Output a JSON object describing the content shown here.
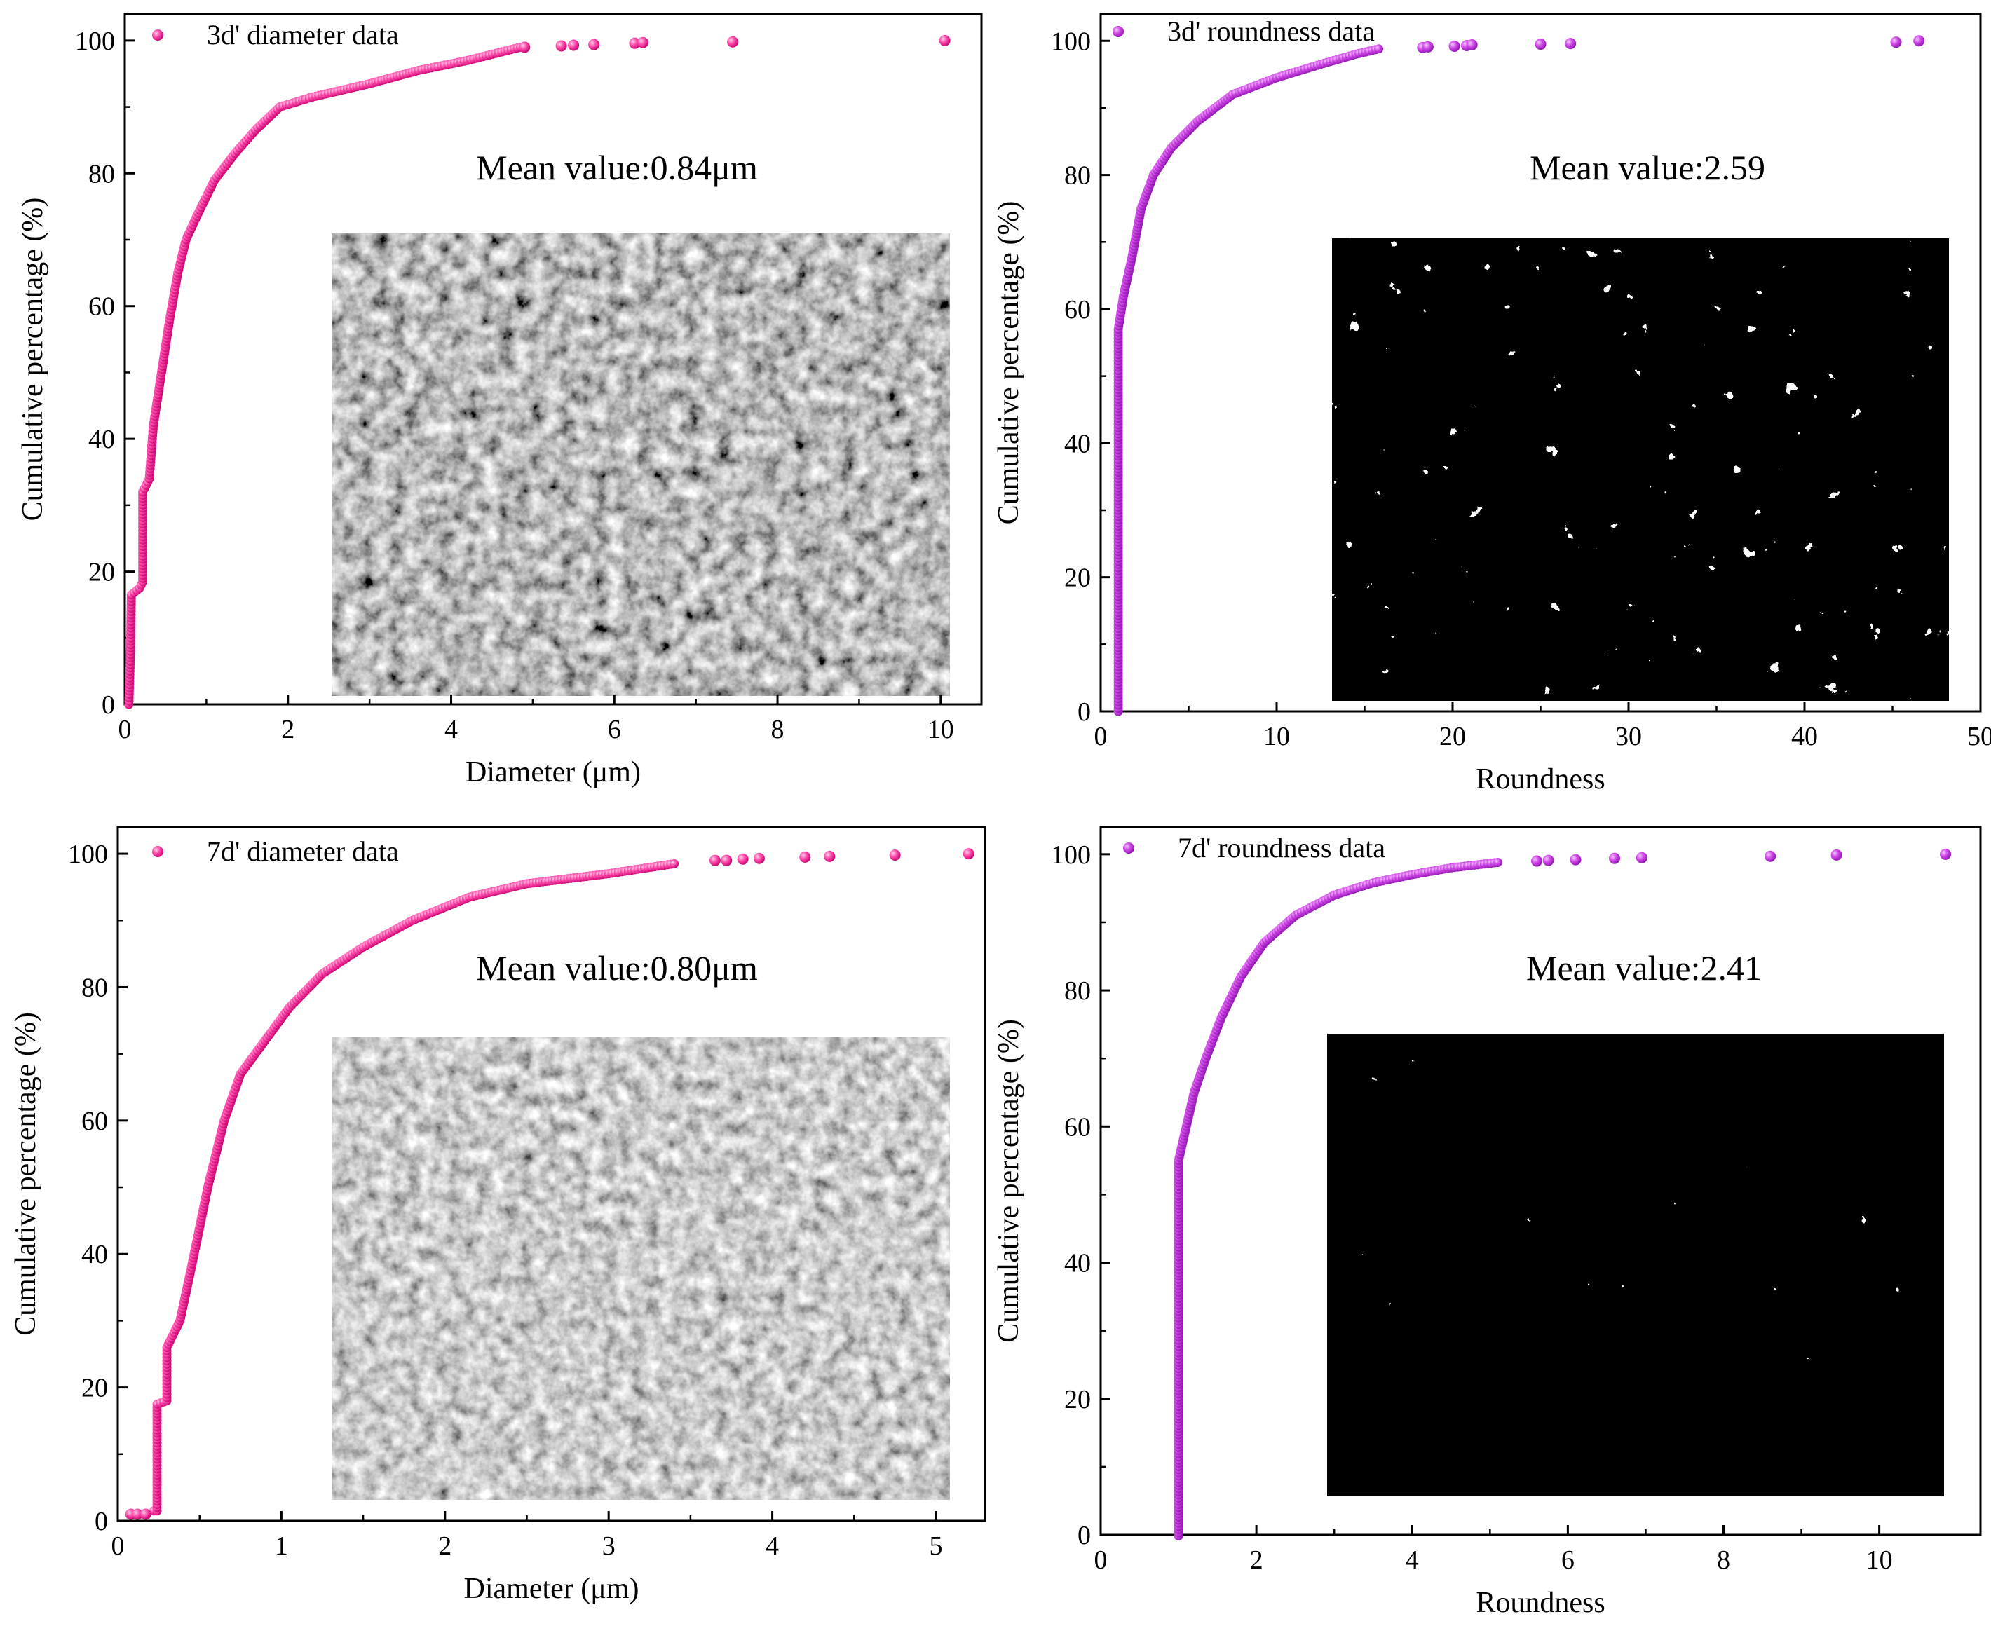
{
  "chart_data": [
    {
      "type": "scatter",
      "panel": "top-left",
      "legend_label": "3d' diameter data",
      "legend_position": "top-left",
      "annotation": "Mean value:0.84μm",
      "xlabel": "Diameter (μm)",
      "ylabel": "Cumulative percentage (%)",
      "xlim": [
        0,
        10.5
      ],
      "ylim": [
        0,
        104
      ],
      "xticks": [
        "0",
        "2",
        "4",
        "6",
        "8",
        "10"
      ],
      "yticks": [
        "0",
        "20",
        "40",
        "60",
        "80",
        "100"
      ],
      "color": "#ff3fa4",
      "inset_image": "SEM micrograph (grayscale)",
      "curve_points": [
        [
          0.05,
          0
        ],
        [
          0.07,
          8
        ],
        [
          0.08,
          16.5
        ],
        [
          0.18,
          17.5
        ],
        [
          0.22,
          18.5
        ],
        [
          0.22,
          32
        ],
        [
          0.3,
          34
        ],
        [
          0.35,
          42
        ],
        [
          0.45,
          50
        ],
        [
          0.55,
          58
        ],
        [
          0.65,
          65
        ],
        [
          0.75,
          70
        ],
        [
          0.9,
          74
        ],
        [
          1.1,
          79
        ],
        [
          1.35,
          83
        ],
        [
          1.6,
          86.5
        ],
        [
          1.9,
          90
        ],
        [
          2.3,
          91.5
        ],
        [
          3.0,
          93.5
        ],
        [
          3.6,
          95.5
        ],
        [
          4.2,
          97
        ],
        [
          4.85,
          99
        ]
      ],
      "sparse_points": [
        [
          4.9,
          99
        ],
        [
          5.35,
          99.2
        ],
        [
          5.5,
          99.3
        ],
        [
          5.75,
          99.4
        ],
        [
          6.25,
          99.6
        ],
        [
          6.35,
          99.7
        ],
        [
          7.45,
          99.8
        ],
        [
          10.05,
          100
        ]
      ]
    },
    {
      "type": "scatter",
      "panel": "top-right",
      "legend_label": "3d' roundness data",
      "legend_position": "top-left",
      "annotation": "Mean value:2.59",
      "xlabel": "Roundness",
      "ylabel": "Cumulative percentage (%)",
      "xlim": [
        0,
        50
      ],
      "ylim": [
        0,
        104
      ],
      "xticks": [
        "0",
        "10",
        "20",
        "30",
        "40",
        "50"
      ],
      "yticks": [
        "0",
        "20",
        "40",
        "60",
        "80",
        "100"
      ],
      "color": "#d24be8",
      "inset_image": "binarized pore map (black background, white pores)",
      "curve_points": [
        [
          1.0,
          0
        ],
        [
          1.0,
          30
        ],
        [
          1.0,
          57
        ],
        [
          1.3,
          62
        ],
        [
          1.8,
          68
        ],
        [
          2.3,
          75
        ],
        [
          3.0,
          80
        ],
        [
          4.0,
          84
        ],
        [
          5.5,
          88
        ],
        [
          7.5,
          92
        ],
        [
          10,
          94.5
        ],
        [
          12.5,
          96.5
        ],
        [
          14.5,
          98
        ],
        [
          15.8,
          98.8
        ]
      ],
      "sparse_points": [
        [
          18.3,
          99
        ],
        [
          18.6,
          99.1
        ],
        [
          20.1,
          99.2
        ],
        [
          20.8,
          99.3
        ],
        [
          21.1,
          99.4
        ],
        [
          25.0,
          99.5
        ],
        [
          26.7,
          99.6
        ],
        [
          45.2,
          99.8
        ],
        [
          46.5,
          100
        ]
      ]
    },
    {
      "type": "scatter",
      "panel": "bottom-left",
      "legend_label": "7d' diameter data",
      "legend_position": "top-left",
      "annotation": "Mean value:0.80μm",
      "xlabel": "Diameter (μm)",
      "ylabel": "Cumulative percentage (%)",
      "xlim": [
        0,
        5.3
      ],
      "ylim": [
        0,
        104
      ],
      "xticks": [
        "0",
        "1",
        "2",
        "3",
        "4",
        "5"
      ],
      "yticks": [
        "0",
        "20",
        "40",
        "60",
        "80",
        "100"
      ],
      "color": "#ff3fa4",
      "inset_image": "SEM micrograph (grayscale)",
      "curve_points": [
        [
          0.22,
          1.5
        ],
        [
          0.24,
          1.5
        ],
        [
          0.24,
          17.5
        ],
        [
          0.3,
          18
        ],
        [
          0.3,
          26
        ],
        [
          0.38,
          30
        ],
        [
          0.45,
          38
        ],
        [
          0.55,
          50
        ],
        [
          0.65,
          60
        ],
        [
          0.75,
          67
        ],
        [
          0.9,
          72
        ],
        [
          1.05,
          77
        ],
        [
          1.25,
          82
        ],
        [
          1.5,
          86
        ],
        [
          1.8,
          90
        ],
        [
          2.15,
          93.5
        ],
        [
          2.5,
          95.5
        ],
        [
          3.0,
          97
        ],
        [
          3.4,
          98.5
        ]
      ],
      "sparse_points": [
        [
          0.08,
          1
        ],
        [
          0.12,
          1
        ],
        [
          0.17,
          1
        ],
        [
          3.65,
          99
        ],
        [
          3.72,
          99
        ],
        [
          3.82,
          99.2
        ],
        [
          3.92,
          99.3
        ],
        [
          4.2,
          99.5
        ],
        [
          4.35,
          99.6
        ],
        [
          4.75,
          99.8
        ],
        [
          5.2,
          100
        ]
      ]
    },
    {
      "type": "scatter",
      "panel": "bottom-right",
      "legend_label": "7d' roundness data",
      "legend_position": "top-left",
      "annotation": "Mean value:2.41",
      "xlabel": "Roundness",
      "ylabel": "Cumulative percentage (%)",
      "xlim": [
        0,
        11.3
      ],
      "ylim": [
        0,
        104
      ],
      "xticks": [
        "0",
        "2",
        "4",
        "6",
        "8",
        "10"
      ],
      "yticks": [
        "0",
        "20",
        "40",
        "60",
        "80",
        "100"
      ],
      "color": "#d24be8",
      "inset_image": "binarized pore map (black background, white pores)",
      "curve_points": [
        [
          1.0,
          -2
        ],
        [
          1.0,
          30
        ],
        [
          1.0,
          55
        ],
        [
          1.1,
          60
        ],
        [
          1.2,
          65
        ],
        [
          1.35,
          70
        ],
        [
          1.55,
          76
        ],
        [
          1.8,
          82
        ],
        [
          2.1,
          87
        ],
        [
          2.5,
          91
        ],
        [
          3.0,
          94
        ],
        [
          3.5,
          95.8
        ],
        [
          4.0,
          97
        ],
        [
          4.5,
          98
        ],
        [
          5.1,
          98.8
        ]
      ],
      "sparse_points": [
        [
          5.6,
          99
        ],
        [
          5.75,
          99.1
        ],
        [
          6.1,
          99.2
        ],
        [
          6.6,
          99.4
        ],
        [
          6.95,
          99.5
        ],
        [
          8.6,
          99.7
        ],
        [
          9.45,
          99.9
        ],
        [
          10.85,
          100
        ]
      ]
    }
  ]
}
